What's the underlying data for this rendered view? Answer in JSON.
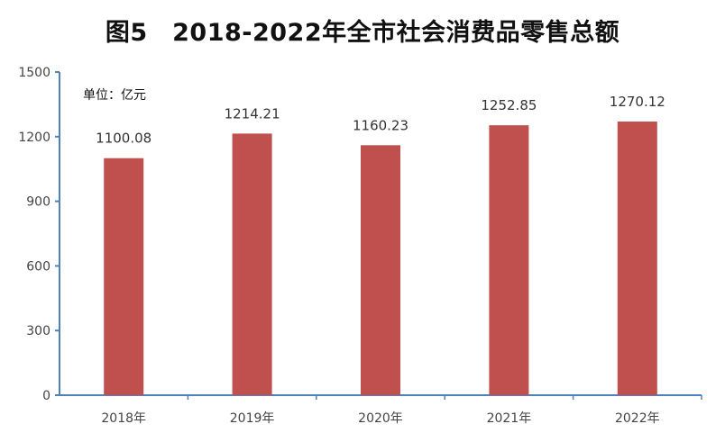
{
  "chart_data": {
    "type": "bar",
    "title": "图5　2018-2022年全市社会消费品零售总额",
    "unit_label": "单位：亿元",
    "categories": [
      "2018年",
      "2019年",
      "2020年",
      "2021年",
      "2022年"
    ],
    "values": [
      1100.08,
      1214.21,
      1160.23,
      1252.85,
      1270.12
    ],
    "value_labels": [
      "1100.08",
      "1214.21",
      "1160.23",
      "1252.85",
      "1270.12"
    ],
    "xlabel": "",
    "ylabel": "",
    "ylim": [
      0,
      1500
    ],
    "yticks": [
      "0",
      "300",
      "600",
      "900",
      "1200",
      "1500"
    ],
    "grid": false,
    "legend": "none",
    "bar_color": "#C0504D",
    "axis_color": "#4F81BD"
  }
}
